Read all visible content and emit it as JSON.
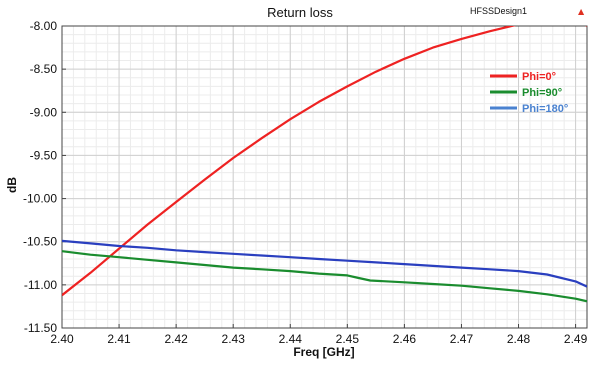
{
  "chart_data": {
    "type": "line",
    "title": "Return loss",
    "design_label": "HFSSDesign1",
    "xlabel": "Freq [GHz]",
    "ylabel": "dB",
    "xlim": [
      2.4,
      2.492
    ],
    "ylim": [
      -11.5,
      -8.0
    ],
    "xticks": [
      "2.40",
      "2.41",
      "2.42",
      "2.43",
      "2.44",
      "2.45",
      "2.46",
      "2.47",
      "2.48",
      "2.49"
    ],
    "yticks": [
      "-8.00",
      "-8.50",
      "-9.00",
      "-9.50",
      "-10.00",
      "-10.50",
      "-11.00",
      "-11.50"
    ],
    "grid": true,
    "legend_position": "top-right",
    "marker_glyph": "▲",
    "series": [
      {
        "name": "Phi=0°",
        "color": "#ee2222",
        "x": [
          2.4,
          2.405,
          2.41,
          2.415,
          2.42,
          2.425,
          2.43,
          2.435,
          2.44,
          2.445,
          2.45,
          2.455,
          2.46,
          2.465,
          2.47,
          2.475,
          2.48,
          2.485,
          2.49,
          2.492
        ],
        "y": [
          -11.12,
          -10.86,
          -10.58,
          -10.3,
          -10.04,
          -9.78,
          -9.53,
          -9.3,
          -9.08,
          -8.88,
          -8.7,
          -8.53,
          -8.38,
          -8.25,
          -8.15,
          -8.06,
          -7.98,
          -7.92,
          -7.87,
          -8.0
        ]
      },
      {
        "name": "Phi=90°",
        "color": "#1a8c2e",
        "x": [
          2.4,
          2.405,
          2.41,
          2.415,
          2.42,
          2.425,
          2.43,
          2.435,
          2.44,
          2.445,
          2.45,
          2.452,
          2.454,
          2.46,
          2.465,
          2.47,
          2.475,
          2.48,
          2.485,
          2.49,
          2.492
        ],
        "y": [
          -10.61,
          -10.65,
          -10.68,
          -10.71,
          -10.74,
          -10.77,
          -10.8,
          -10.82,
          -10.84,
          -10.87,
          -10.89,
          -10.92,
          -10.95,
          -10.97,
          -10.99,
          -11.01,
          -11.04,
          -11.07,
          -11.11,
          -11.16,
          -11.19
        ]
      },
      {
        "name": "Phi=180°",
        "color": "#2a3fbf",
        "x": [
          2.4,
          2.405,
          2.41,
          2.415,
          2.42,
          2.425,
          2.43,
          2.435,
          2.44,
          2.445,
          2.45,
          2.455,
          2.46,
          2.465,
          2.47,
          2.475,
          2.48,
          2.485,
          2.49,
          2.492
        ],
        "y": [
          -10.49,
          -10.52,
          -10.55,
          -10.57,
          -10.6,
          -10.62,
          -10.64,
          -10.66,
          -10.68,
          -10.7,
          -10.72,
          -10.74,
          -10.76,
          -10.78,
          -10.8,
          -10.82,
          -10.84,
          -10.88,
          -10.96,
          -11.02
        ]
      }
    ],
    "legend_colors": [
      "#ee2222",
      "#1a8c2e",
      "#4a82d0"
    ]
  }
}
